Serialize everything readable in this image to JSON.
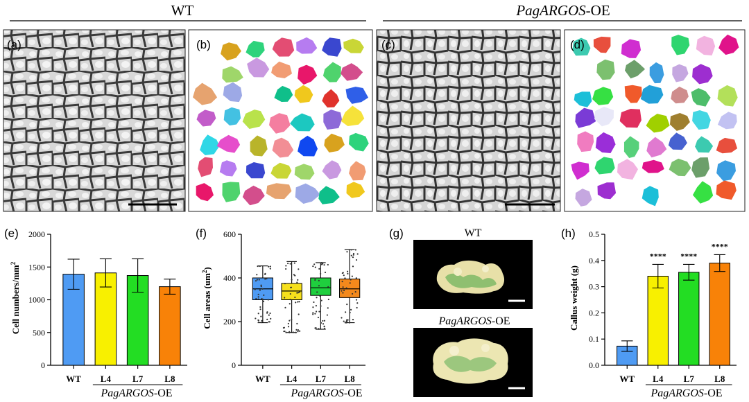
{
  "headers": {
    "left": "WT",
    "right_italic": "PagARGOS",
    "right_suffix": "-OE"
  },
  "panels": {
    "a": "(a)",
    "b": "(b)",
    "c": "(c)",
    "d": "(d)",
    "e": "(e)",
    "f": "(f)",
    "g": "(g)",
    "h": "(h)"
  },
  "group_label": {
    "italic": "PagARGOS",
    "suffix": "-OE"
  },
  "photo_titles": {
    "top": "WT",
    "bottom_italic": "PagARGOS",
    "bottom_suffix": "-OE"
  },
  "colors": {
    "WT": "#4f9bf3",
    "L4": "#f8f000",
    "L7": "#23dd23",
    "L8": "#f88208",
    "L4_box": "#f6e01c",
    "L7_box": "#1fcf3e",
    "L8_box": "#f4891c"
  },
  "chart_data": [
    {
      "id": "e",
      "type": "bar",
      "categories": [
        "WT",
        "L4",
        "L7",
        "L8"
      ],
      "values": [
        1390,
        1410,
        1370,
        1200
      ],
      "errors": [
        230,
        215,
        255,
        115
      ],
      "ylabel_main": "Cell numbers/mm",
      "ylabel_sup": "2",
      "ylim": [
        0,
        2000
      ],
      "yticks": [
        0,
        500,
        1000,
        1500,
        2000
      ]
    },
    {
      "id": "f",
      "type": "box",
      "categories": [
        "WT",
        "L4",
        "L7",
        "L8"
      ],
      "boxes": [
        {
          "min": 195,
          "q1": 300,
          "median": 350,
          "q3": 400,
          "max": 455
        },
        {
          "min": 150,
          "q1": 300,
          "median": 340,
          "q3": 375,
          "max": 475
        },
        {
          "min": 165,
          "q1": 320,
          "median": 355,
          "q3": 400,
          "max": 470
        },
        {
          "min": 195,
          "q1": 310,
          "median": 350,
          "q3": 395,
          "max": 530
        }
      ],
      "ylabel_main": "Cell areas (um",
      "ylabel_sup": "2",
      "ylabel_end": ")",
      "ylim": [
        0,
        600
      ],
      "yticks": [
        0,
        200,
        400,
        600
      ]
    },
    {
      "id": "h",
      "type": "bar",
      "categories": [
        "WT",
        "L4",
        "L7",
        "L8"
      ],
      "values": [
        0.073,
        0.34,
        0.355,
        0.39
      ],
      "errors": [
        0.02,
        0.045,
        0.03,
        0.032
      ],
      "significance": [
        "",
        "****",
        "****",
        "****"
      ],
      "ylabel": "Callus weight (g)",
      "ylim": [
        0,
        0.5
      ],
      "yticks": [
        "0.0",
        "0.1",
        "0.2",
        "0.3",
        "0.4",
        "0.5"
      ]
    }
  ]
}
